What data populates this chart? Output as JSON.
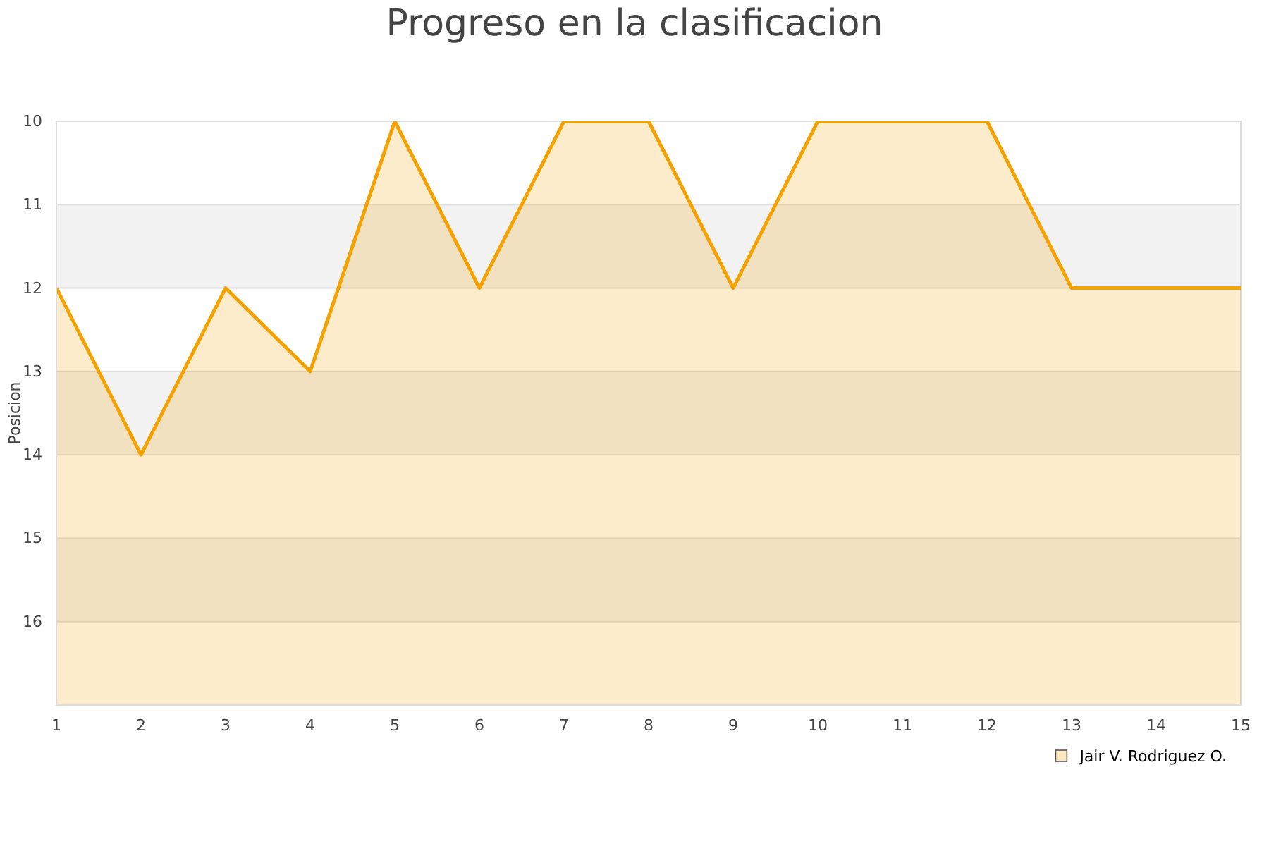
{
  "chart_data": {
    "type": "area",
    "title": "Progreso en la clasificacion",
    "ylabel": "Posicion",
    "x": [
      1,
      2,
      3,
      4,
      5,
      6,
      7,
      8,
      9,
      10,
      11,
      12,
      13,
      14,
      15
    ],
    "series": [
      {
        "name": "Jair V. Rodriguez O.",
        "color": "#f5a100",
        "values": [
          12,
          14,
          12,
          13,
          10,
          12,
          10,
          10,
          12,
          10,
          10,
          10,
          12,
          12,
          12
        ]
      }
    ],
    "xlim": [
      1,
      15
    ],
    "xticks": [
      1,
      2,
      3,
      4,
      5,
      6,
      7,
      8,
      9,
      10,
      11,
      12,
      13,
      14,
      15
    ],
    "ylim": [
      17,
      10
    ],
    "yticks": [
      10,
      11,
      12,
      13,
      14,
      15,
      16
    ],
    "grid": "y",
    "legend": "bottom right"
  }
}
